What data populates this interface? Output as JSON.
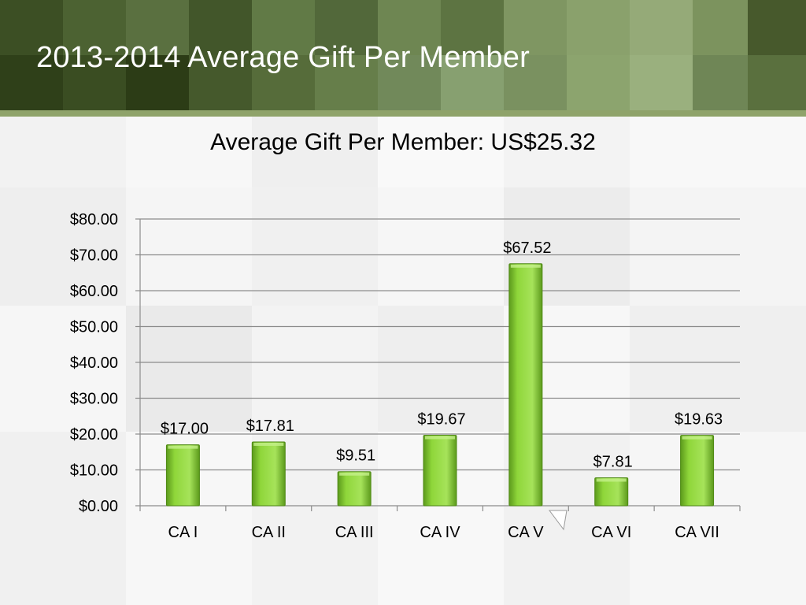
{
  "slide": {
    "title": "2013-2014 Average Gift Per Member"
  },
  "colors": {
    "header_dark": "#3f5224",
    "header_light": "#8fa36a",
    "bar_fill": "#8fd63a",
    "bar_edge": "#5c9a1c",
    "gridline": "#8c8c8c"
  },
  "chart_data": {
    "type": "bar",
    "title": "Average Gift Per Member: US$25.32",
    "categories": [
      "CA I",
      "CA II",
      "CA III",
      "CA IV",
      "CA V",
      "CA VI",
      "CA VII"
    ],
    "values": [
      17.0,
      17.81,
      9.51,
      19.67,
      67.52,
      7.81,
      19.63
    ],
    "data_labels": [
      "$17.00",
      "$17.81",
      "$9.51",
      "$19.67",
      "$67.52",
      "$7.81",
      "$19.63"
    ],
    "y_ticks": [
      "$0.00",
      "$10.00",
      "$20.00",
      "$30.00",
      "$40.00",
      "$50.00",
      "$60.00",
      "$70.00",
      "$80.00"
    ],
    "ylim": [
      0,
      80
    ],
    "y_step": 10,
    "grid": true,
    "legend": "none",
    "xlabel": "",
    "ylabel": ""
  }
}
